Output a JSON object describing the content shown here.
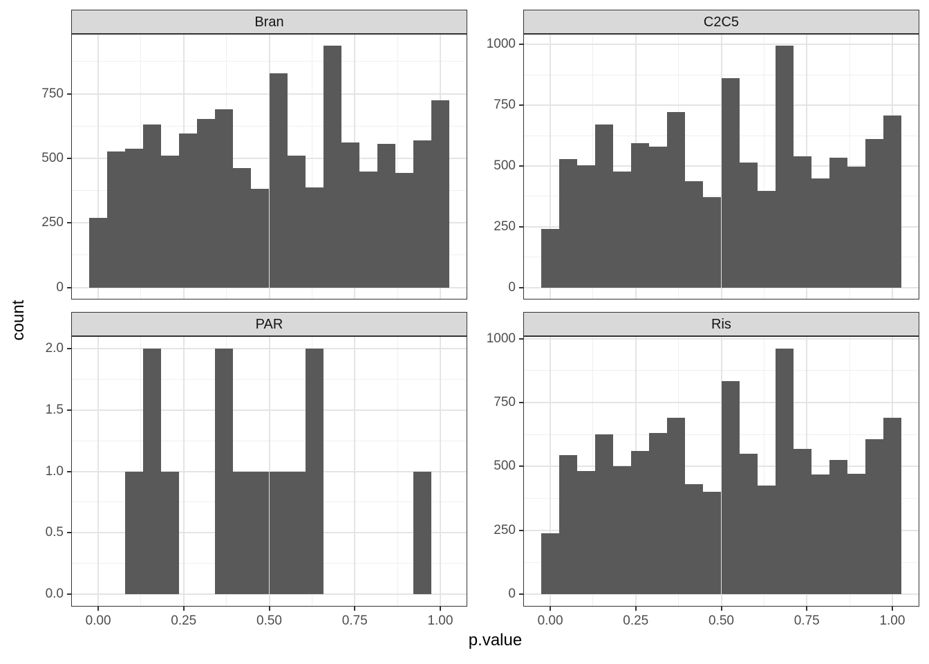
{
  "figure": {
    "y_axis_title": "count",
    "x_axis_title": "p.value",
    "colors": {
      "bar_fill": "#595959",
      "panel_background": "#ffffff",
      "panel_border": "#333333",
      "strip_fill": "#d9d9d9",
      "strip_text": "#141414",
      "grid_major": "#e4e4e4",
      "grid_minor": "#efefef",
      "tick_label": "#4d4d4d",
      "axis_title": "#000000"
    }
  },
  "chart_data": {
    "type": "bar",
    "subtype": "faceted-histogram",
    "xlabel": "p.value",
    "ylabel": "count",
    "facets": [
      "Bran",
      "C2C5",
      "PAR",
      "Ris"
    ],
    "bin_start": -0.0263,
    "bin_width": 0.05263,
    "n_bins": 20,
    "x_ticks": [
      0,
      0.25,
      0.5,
      0.75,
      1.0
    ],
    "x_tick_labels": [
      "0.00",
      "0.25",
      "0.50",
      "0.75",
      "1.00"
    ],
    "x_expansion": 0.05,
    "y_expansion": 0.05,
    "grid": "on",
    "legend": "none",
    "panels": [
      {
        "facet": "Bran",
        "counts": [
          270,
          527,
          537,
          632,
          510,
          595,
          652,
          690,
          462,
          382,
          828,
          510,
          387,
          935,
          560,
          450,
          557,
          444,
          570,
          725
        ],
        "y_ticks": [
          0,
          250,
          500,
          750
        ],
        "y_tick_labels": [
          "0",
          "250",
          "500",
          "750"
        ],
        "y_max_data": 935
      },
      {
        "facet": "C2C5",
        "counts": [
          240,
          527,
          502,
          670,
          477,
          595,
          580,
          722,
          437,
          372,
          862,
          515,
          397,
          994,
          540,
          448,
          535,
          497,
          610,
          707
        ],
        "y_ticks": [
          0,
          250,
          500,
          750,
          1000
        ],
        "y_tick_labels": [
          "0",
          "250",
          "500",
          "750",
          "1000"
        ],
        "y_max_data": 994
      },
      {
        "facet": "PAR",
        "counts": [
          0,
          0,
          1,
          2,
          1,
          0,
          0,
          2,
          1,
          1,
          1,
          1,
          2,
          0,
          0,
          0,
          0,
          0,
          1,
          0
        ],
        "y_ticks": [
          0,
          0.5,
          1.0,
          1.5,
          2.0
        ],
        "y_tick_labels": [
          "0.0",
          "0.5",
          "1.0",
          "1.5",
          "2.0"
        ],
        "y_max_data": 2
      },
      {
        "facet": "Ris",
        "counts": [
          240,
          545,
          483,
          627,
          500,
          560,
          632,
          692,
          432,
          400,
          835,
          550,
          425,
          962,
          570,
          470,
          527,
          472,
          607,
          690
        ],
        "y_ticks": [
          0,
          250,
          500,
          750,
          1000
        ],
        "y_tick_labels": [
          "0",
          "250",
          "500",
          "750",
          "1000"
        ],
        "y_max_data": 962
      }
    ]
  }
}
